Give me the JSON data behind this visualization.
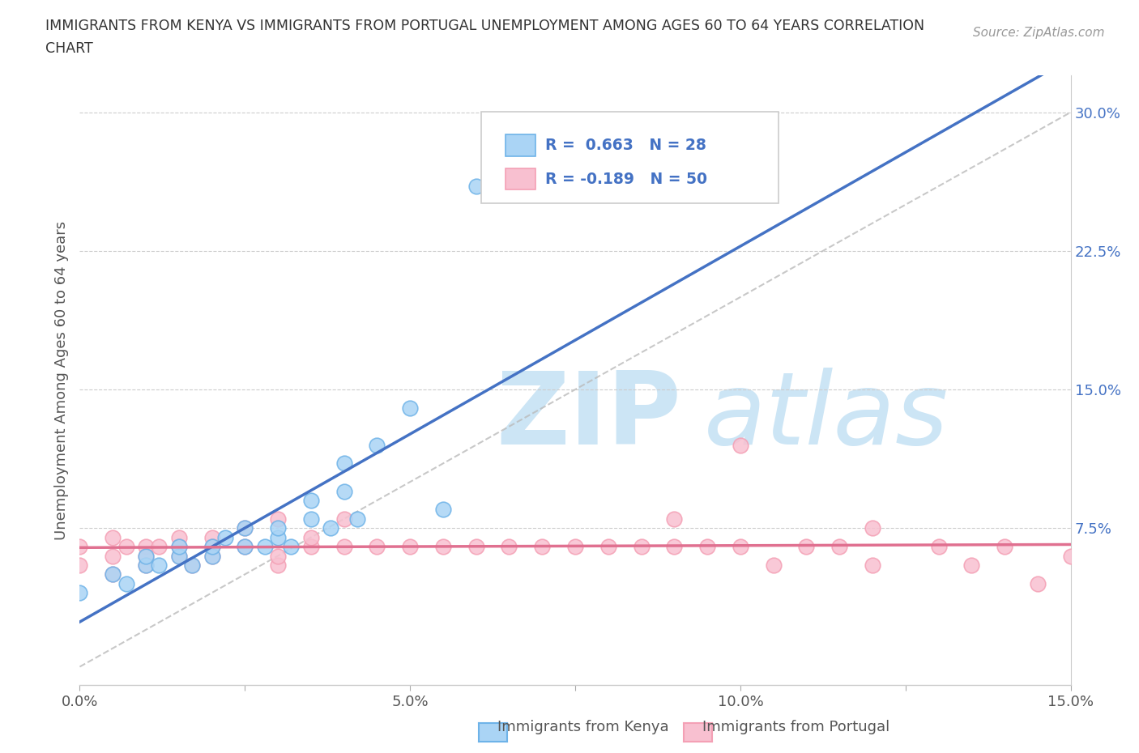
{
  "title_line1": "IMMIGRANTS FROM KENYA VS IMMIGRANTS FROM PORTUGAL UNEMPLOYMENT AMONG AGES 60 TO 64 YEARS CORRELATION",
  "title_line2": "CHART",
  "source": "Source: ZipAtlas.com",
  "ylabel": "Unemployment Among Ages 60 to 64 years",
  "xlim": [
    0.0,
    0.15
  ],
  "ylim": [
    -0.01,
    0.32
  ],
  "xticks": [
    0.0,
    0.025,
    0.05,
    0.075,
    0.1,
    0.125,
    0.15
  ],
  "xtick_labels": [
    "0.0%",
    "",
    "5.0%",
    "",
    "10.0%",
    "",
    "15.0%"
  ],
  "yticks": [
    0.075,
    0.15,
    0.225,
    0.3
  ],
  "ytick_labels": [
    "7.5%",
    "15.0%",
    "22.5%",
    "30.0%"
  ],
  "kenya_color_face": "#aad4f5",
  "kenya_color_edge": "#6eb3e8",
  "portugal_color_face": "#f8c0d0",
  "portugal_color_edge": "#f4a0b5",
  "line_kenya_color": "#4472c4",
  "line_portugal_color": "#e07090",
  "kenya_R": 0.663,
  "kenya_N": 28,
  "portugal_R": -0.189,
  "portugal_N": 50,
  "kenya_x": [
    0.0,
    0.005,
    0.007,
    0.01,
    0.01,
    0.012,
    0.015,
    0.015,
    0.017,
    0.02,
    0.02,
    0.022,
    0.025,
    0.025,
    0.028,
    0.03,
    0.03,
    0.032,
    0.035,
    0.035,
    0.038,
    0.04,
    0.04,
    0.042,
    0.045,
    0.05,
    0.055,
    0.06
  ],
  "kenya_y": [
    0.04,
    0.05,
    0.045,
    0.055,
    0.06,
    0.055,
    0.06,
    0.065,
    0.055,
    0.06,
    0.065,
    0.07,
    0.065,
    0.075,
    0.065,
    0.07,
    0.075,
    0.065,
    0.08,
    0.09,
    0.075,
    0.095,
    0.11,
    0.08,
    0.12,
    0.14,
    0.085,
    0.26
  ],
  "portugal_x": [
    0.0,
    0.0,
    0.005,
    0.005,
    0.005,
    0.007,
    0.01,
    0.01,
    0.01,
    0.012,
    0.015,
    0.015,
    0.015,
    0.017,
    0.02,
    0.02,
    0.02,
    0.025,
    0.025,
    0.03,
    0.03,
    0.03,
    0.035,
    0.035,
    0.04,
    0.04,
    0.045,
    0.05,
    0.055,
    0.06,
    0.065,
    0.07,
    0.075,
    0.08,
    0.085,
    0.09,
    0.09,
    0.095,
    0.1,
    0.1,
    0.105,
    0.11,
    0.115,
    0.12,
    0.12,
    0.13,
    0.135,
    0.14,
    0.145,
    0.15
  ],
  "portugal_y": [
    0.065,
    0.055,
    0.06,
    0.07,
    0.05,
    0.065,
    0.065,
    0.06,
    0.055,
    0.065,
    0.06,
    0.07,
    0.065,
    0.055,
    0.06,
    0.07,
    0.065,
    0.065,
    0.075,
    0.055,
    0.06,
    0.08,
    0.065,
    0.07,
    0.065,
    0.08,
    0.065,
    0.065,
    0.065,
    0.065,
    0.065,
    0.065,
    0.065,
    0.065,
    0.065,
    0.08,
    0.065,
    0.065,
    0.065,
    0.12,
    0.055,
    0.065,
    0.065,
    0.075,
    0.055,
    0.065,
    0.055,
    0.065,
    0.045,
    0.06
  ],
  "background_color": "#ffffff",
  "grid_color": "#cccccc",
  "watermark_zip": "ZIP",
  "watermark_atlas": "atlas",
  "watermark_color": "#cce5f5"
}
